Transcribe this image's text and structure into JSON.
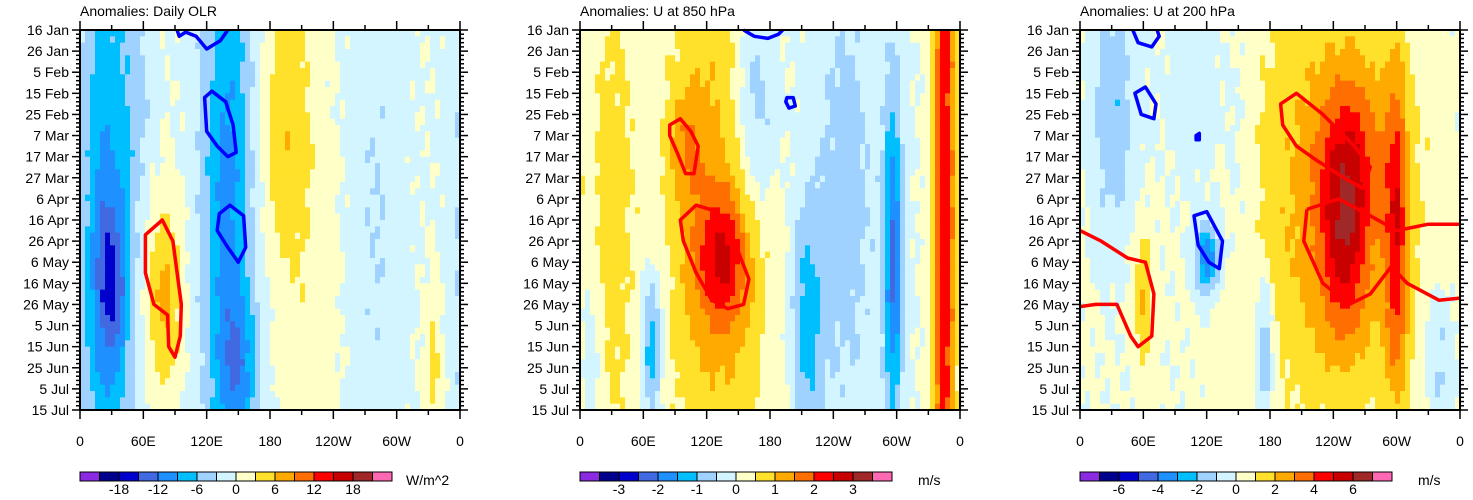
{
  "chart_data": [
    {
      "type": "heatmap",
      "title": "Anomalies: Daily OLR",
      "units": "W/m^2",
      "x_ticks": [
        "0",
        "60E",
        "120E",
        "180",
        "120W",
        "60W",
        "0"
      ],
      "y_ticks": [
        "16 Jan",
        "26 Jan",
        "5 Feb",
        "15 Feb",
        "25 Feb",
        "7 Mar",
        "17 Mar",
        "27 Mar",
        "6 Apr",
        "16 Apr",
        "26 Apr",
        "6 May",
        "16 May",
        "26 May",
        "5 Jun",
        "15 Jun",
        "25 Jun",
        "5 Jul",
        "15 Jul"
      ],
      "xlim_lon": [
        0,
        360
      ],
      "ylim_day": [
        0,
        180
      ],
      "levels": [
        -21,
        -18,
        -15,
        -12,
        -9,
        -6,
        -3,
        0,
        3,
        6,
        9,
        12,
        15,
        18,
        21
      ],
      "colorbar_labels": [
        "-18",
        "-12",
        "-6",
        "0",
        "6",
        "12",
        "18"
      ],
      "features": [
        {
          "lon": 25,
          "day": 90,
          "amp": -9,
          "wl": 18,
          "wd": 120
        },
        {
          "lon": 30,
          "day": 120,
          "amp": -8,
          "wl": 12,
          "wd": 30
        },
        {
          "lon": 140,
          "day": 80,
          "amp": -10,
          "wl": 18,
          "wd": 110
        },
        {
          "lon": 150,
          "day": 160,
          "amp": -6,
          "wl": 14,
          "wd": 25
        },
        {
          "lon": 80,
          "day": 125,
          "amp": 7,
          "wl": 12,
          "wd": 30
        },
        {
          "lon": 195,
          "day": 40,
          "amp": 5,
          "wl": 18,
          "wd": 45
        },
        {
          "lon": 210,
          "day": 120,
          "amp": 2,
          "wl": 25,
          "wd": 60
        },
        {
          "lon": 280,
          "day": 90,
          "amp": -3,
          "wl": 18,
          "wd": 90
        },
        {
          "lon": 335,
          "day": 160,
          "amp": 4,
          "wl": 6,
          "wd": 25
        },
        {
          "lon": 55,
          "day": 30,
          "amp": -3,
          "wl": 10,
          "wd": 30
        }
      ],
      "contours": [
        {
          "color": "#ff0000",
          "points": [
            [
              62,
              97
            ],
            [
              78,
              90
            ],
            [
              88,
              100
            ],
            [
              96,
              130
            ],
            [
              95,
              145
            ],
            [
              90,
              155
            ],
            [
              84,
              150
            ],
            [
              83,
              135
            ],
            [
              70,
              130
            ],
            [
              62,
              115
            ]
          ]
        },
        {
          "color": "#0000ff",
          "points": [
            [
              118,
              32
            ],
            [
              125,
              29
            ],
            [
              138,
              34
            ],
            [
              145,
              45
            ],
            [
              148,
              58
            ],
            [
              140,
              60
            ],
            [
              130,
              55
            ],
            [
              120,
              48
            ]
          ]
        },
        {
          "color": "#0000ff",
          "points": [
            [
              132,
              87
            ],
            [
              142,
              83
            ],
            [
              155,
              88
            ],
            [
              157,
              103
            ],
            [
              150,
              110
            ],
            [
              140,
              103
            ],
            [
              130,
              95
            ]
          ]
        },
        {
          "color": "#0000ff",
          "points": [
            [
              92,
              0
            ],
            [
              94,
              3
            ],
            [
              100,
              1
            ],
            [
              110,
              3
            ],
            [
              120,
              9
            ],
            [
              133,
              5
            ],
            [
              140,
              0
            ]
          ]
        }
      ]
    },
    {
      "type": "heatmap",
      "title": "Anomalies: U at 850 hPa",
      "units": "m/s",
      "x_ticks": [
        "0",
        "60E",
        "120E",
        "180",
        "120W",
        "60W",
        "0"
      ],
      "y_ticks": [
        "16 Jan",
        "26 Jan",
        "5 Feb",
        "15 Feb",
        "25 Feb",
        "7 Mar",
        "17 Mar",
        "27 Mar",
        "6 Apr",
        "16 Apr",
        "26 Apr",
        "6 May",
        "16 May",
        "26 May",
        "5 Jun",
        "15 Jun",
        "25 Jun",
        "5 Jul",
        "15 Jul"
      ],
      "xlim_lon": [
        0,
        360
      ],
      "ylim_day": [
        0,
        180
      ],
      "levels": [
        -3.5,
        -3,
        -2.5,
        -2,
        -1.5,
        -1,
        -0.5,
        0,
        0.5,
        1,
        1.5,
        2,
        2.5,
        3,
        3.5
      ],
      "colorbar_labels": [
        "-3",
        "-2",
        "-1",
        "0",
        "1",
        "2",
        "3"
      ],
      "features": [
        {
          "lon": 130,
          "day": 90,
          "amp": 1.2,
          "wl": 35,
          "wd": 110
        },
        {
          "lon": 135,
          "day": 108,
          "amp": 1.6,
          "wl": 18,
          "wd": 22
        },
        {
          "lon": 100,
          "day": 55,
          "amp": 0.8,
          "wl": 12,
          "wd": 20
        },
        {
          "lon": 30,
          "day": 90,
          "amp": 0.7,
          "wl": 18,
          "wd": 110
        },
        {
          "lon": 165,
          "day": 35,
          "amp": -1.2,
          "wl": 15,
          "wd": 40
        },
        {
          "lon": 215,
          "day": 140,
          "amp": -1.2,
          "wl": 10,
          "wd": 40
        },
        {
          "lon": 297,
          "day": 110,
          "amp": -2,
          "wl": 6,
          "wd": 60
        },
        {
          "lon": 345,
          "day": 90,
          "amp": 2.3,
          "wl": 8,
          "wd": 200
        },
        {
          "lon": 68,
          "day": 150,
          "amp": -1.5,
          "wl": 7,
          "wd": 25
        },
        {
          "lon": 250,
          "day": 80,
          "amp": -0.7,
          "wl": 25,
          "wd": 90
        },
        {
          "lon": 10,
          "day": 150,
          "amp": -0.6,
          "wl": 8,
          "wd": 30
        }
      ],
      "contours": [
        {
          "color": "#ff0000",
          "points": [
            [
              85,
              45
            ],
            [
              95,
              42
            ],
            [
              105,
              48
            ],
            [
              112,
              55
            ],
            [
              108,
              68
            ],
            [
              100,
              68
            ],
            [
              92,
              58
            ],
            [
              85,
              50
            ]
          ]
        },
        {
          "color": "#ff0000",
          "points": [
            [
              95,
              90
            ],
            [
              110,
              83
            ],
            [
              130,
              86
            ],
            [
              150,
              105
            ],
            [
              160,
              118
            ],
            [
              155,
              130
            ],
            [
              140,
              132
            ],
            [
              125,
              128
            ],
            [
              110,
              115
            ],
            [
              98,
              100
            ]
          ]
        },
        {
          "color": "#0000ff",
          "points": [
            [
              155,
              0
            ],
            [
              165,
              3
            ],
            [
              178,
              4
            ],
            [
              188,
              2
            ],
            [
              192,
              0
            ]
          ]
        },
        {
          "color": "#0000ff",
          "points": [
            [
              196,
              32
            ],
            [
              202,
              32
            ],
            [
              204,
              36
            ],
            [
              198,
              37
            ],
            [
              195,
              34
            ]
          ]
        }
      ]
    },
    {
      "type": "heatmap",
      "title": "Anomalies: U at 200 hPa",
      "units": "m/s",
      "x_ticks": [
        "0",
        "60E",
        "120E",
        "180",
        "120W",
        "60W",
        "0"
      ],
      "y_ticks": [
        "16 Jan",
        "26 Jan",
        "5 Feb",
        "15 Feb",
        "25 Feb",
        "7 Mar",
        "17 Mar",
        "27 Mar",
        "6 Apr",
        "16 Apr",
        "26 Apr",
        "6 May",
        "16 May",
        "26 May",
        "5 Jun",
        "15 Jun",
        "25 Jun",
        "5 Jul",
        "15 Jul"
      ],
      "xlim_lon": [
        0,
        360
      ],
      "ylim_day": [
        0,
        180
      ],
      "levels": [
        -7,
        -6,
        -5,
        -4,
        -3,
        -2,
        -1,
        0,
        1,
        2,
        3,
        4,
        5,
        6,
        7
      ],
      "colorbar_labels": [
        "-6",
        "-4",
        "-2",
        "0",
        "2",
        "4",
        "6"
      ],
      "features": [
        {
          "lon": 240,
          "day": 80,
          "amp": 2.5,
          "wl": 60,
          "wd": 80
        },
        {
          "lon": 255,
          "day": 65,
          "amp": 2.8,
          "wl": 20,
          "wd": 30
        },
        {
          "lon": 250,
          "day": 110,
          "amp": 2.5,
          "wl": 15,
          "wd": 30
        },
        {
          "lon": 300,
          "day": 100,
          "amp": 3.5,
          "wl": 8,
          "wd": 55
        },
        {
          "lon": 60,
          "day": 130,
          "amp": 2,
          "wl": 7,
          "wd": 25
        },
        {
          "lon": 30,
          "day": 40,
          "amp": -2,
          "wl": 15,
          "wd": 40
        },
        {
          "lon": 120,
          "day": 108,
          "amp": -4,
          "wl": 8,
          "wd": 12
        },
        {
          "lon": 175,
          "day": 150,
          "amp": -2.5,
          "wl": 6,
          "wd": 25
        },
        {
          "lon": 340,
          "day": 155,
          "amp": -1.5,
          "wl": 10,
          "wd": 25
        },
        {
          "lon": 110,
          "day": 30,
          "amp": -1,
          "wl": 15,
          "wd": 30
        },
        {
          "lon": 150,
          "day": 60,
          "amp": -0.8,
          "wl": 12,
          "wd": 50
        }
      ],
      "contours": [
        {
          "color": "#ff0000",
          "points": [
            [
              190,
              35
            ],
            [
              205,
              30
            ],
            [
              230,
              40
            ],
            [
              260,
              55
            ],
            [
              275,
              65
            ],
            [
              268,
              75
            ],
            [
              250,
              70
            ],
            [
              225,
              62
            ],
            [
              205,
              55
            ],
            [
              192,
              45
            ]
          ]
        },
        {
          "color": "#ff0000",
          "points": [
            [
              215,
              85
            ],
            [
              245,
              80
            ],
            [
              275,
              88
            ],
            [
              300,
              95
            ],
            [
              330,
              92
            ],
            [
              360,
              92
            ]
          ]
        },
        {
          "color": "#ff0000",
          "points": [
            [
              215,
              85
            ],
            [
              212,
              100
            ],
            [
              230,
              120
            ],
            [
              255,
              130
            ],
            [
              275,
              125
            ],
            [
              295,
              112
            ],
            [
              310,
              120
            ],
            [
              340,
              128
            ],
            [
              360,
              127
            ]
          ]
        },
        {
          "color": "#ff0000",
          "points": [
            [
              0,
              95
            ],
            [
              20,
              100
            ],
            [
              45,
              108
            ],
            [
              62,
              110
            ],
            [
              70,
              125
            ],
            [
              68,
              145
            ],
            [
              55,
              150
            ],
            [
              48,
              145
            ],
            [
              35,
              130
            ],
            [
              15,
              130
            ],
            [
              0,
              131
            ]
          ]
        },
        {
          "color": "#0000ff",
          "points": [
            [
              50,
              0
            ],
            [
              55,
              6
            ],
            [
              68,
              8
            ],
            [
              75,
              3
            ],
            [
              73,
              0
            ]
          ]
        },
        {
          "color": "#0000ff",
          "points": [
            [
              52,
              30
            ],
            [
              62,
              27
            ],
            [
              72,
              35
            ],
            [
              70,
              42
            ],
            [
              58,
              40
            ]
          ]
        },
        {
          "color": "#0000ff",
          "points": [
            [
              110,
              50
            ],
            [
              113,
              49
            ],
            [
              113,
              52
            ],
            [
              110,
              52
            ]
          ]
        },
        {
          "color": "#0000ff",
          "points": [
            [
              108,
              88
            ],
            [
              120,
              86
            ],
            [
              135,
              100
            ],
            [
              132,
              113
            ],
            [
              122,
              110
            ],
            [
              112,
              102
            ]
          ]
        }
      ]
    }
  ],
  "colors": [
    "#8a2be2",
    "#00008b",
    "#0000cd",
    "#4169e1",
    "#1e90ff",
    "#00bfff",
    "#a0d2ff",
    "#d2f5ff",
    "#ffffc8",
    "#ffe12b",
    "#ffaa00",
    "#ff6e00",
    "#ff0000",
    "#c80000",
    "#a02828",
    "#ff69b4"
  ]
}
